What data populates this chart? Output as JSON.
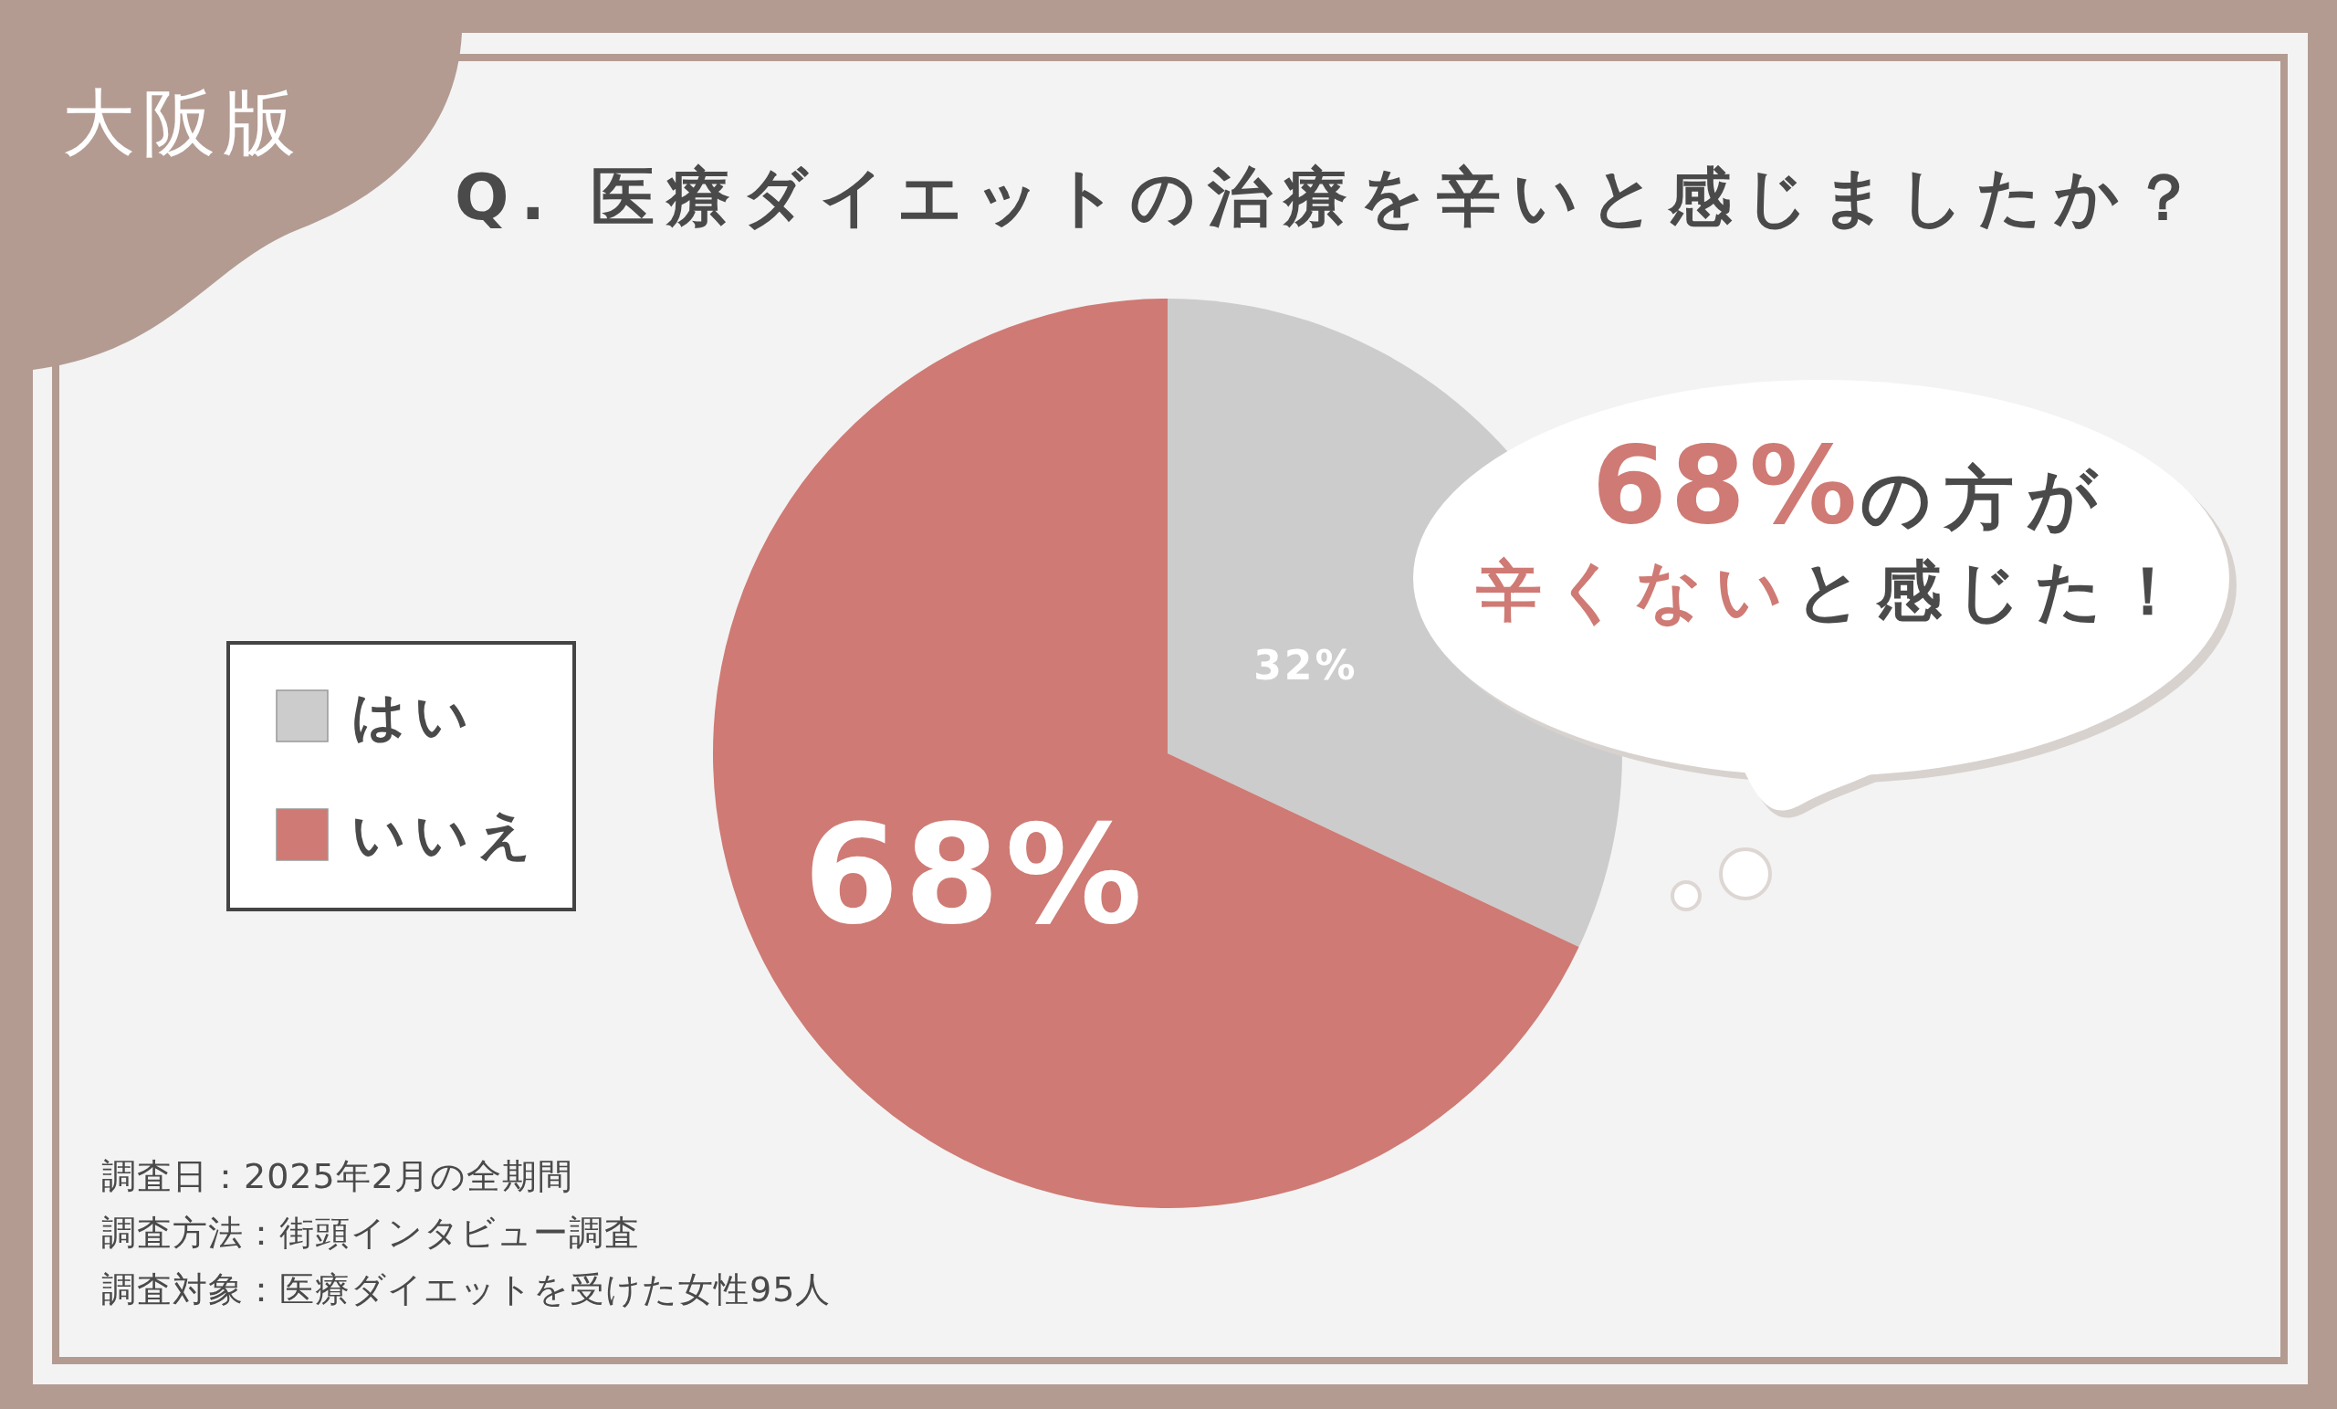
{
  "chart_data": {
    "type": "pie",
    "title": "Q. 医療ダイエットの治療を辛いと感じましたか？",
    "categories": [
      "はい",
      "いいえ"
    ],
    "values": [
      32,
      68
    ],
    "colors": [
      "#cccccc",
      "#cf7a74"
    ],
    "value_labels": [
      "32%",
      "68%"
    ],
    "legend": "left",
    "annotations": [
      "大阪版",
      "68%",
      "の方が",
      "辛くない",
      "と感じた！",
      "調査日：2025年2月の全期間",
      "調査方法：街頭インタビュー調査",
      "調査対象：医療ダイエットを受けた女性95人"
    ]
  }
}
